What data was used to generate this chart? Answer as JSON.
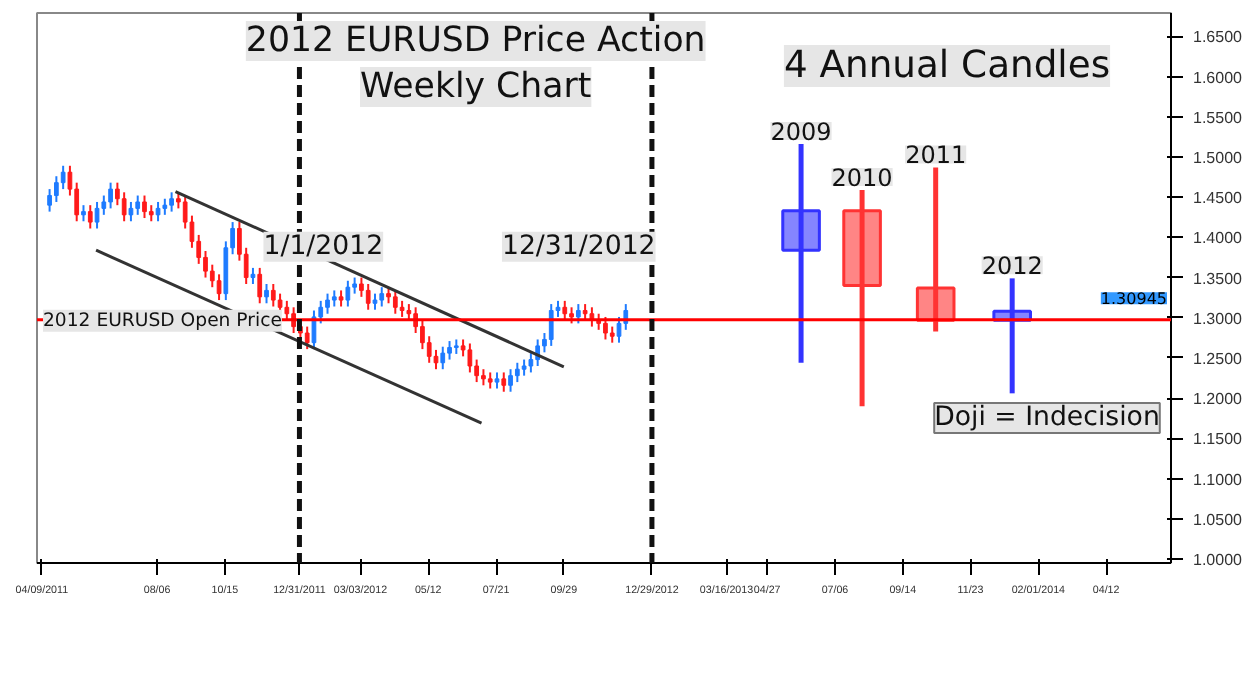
{
  "chart_data": {
    "type": "candlestick",
    "title": "2012 EURUSD Price Action",
    "subtitle": "Weekly Chart",
    "xlim": [
      "2011-04-04",
      "2014-06-18"
    ],
    "ylim": [
      0.995,
      1.679
    ],
    "xticks": [
      {
        "value": "2011-04-09",
        "label": "04/09/2011"
      },
      {
        "value": "2011-08-06",
        "label": "08/06"
      },
      {
        "value": "2011-10-15",
        "label": "10/15"
      },
      {
        "value": "2011-12-31",
        "label": "12/31/2011"
      },
      {
        "value": "2012-03-03",
        "label": "03/03/2012"
      },
      {
        "value": "2012-05-12",
        "label": "05/12"
      },
      {
        "value": "2012-07-21",
        "label": "07/21"
      },
      {
        "value": "2012-09-29",
        "label": "09/29"
      },
      {
        "value": "2012-12-29",
        "label": "12/29/2012"
      },
      {
        "value": "2013-03-16",
        "label": "03/16/2013"
      },
      {
        "value": "2013-04-27",
        "label": "04/27"
      },
      {
        "value": "2013-07-06",
        "label": "07/06"
      },
      {
        "value": "2013-09-14",
        "label": "09/14"
      },
      {
        "value": "2013-11-23",
        "label": "11/23"
      },
      {
        "value": "2014-02-01",
        "label": "02/01/2014"
      },
      {
        "value": "2014-04-12",
        "label": "04/12"
      }
    ],
    "yticks": [
      {
        "value": 1.0,
        "label": "1.0000"
      },
      {
        "value": 1.05,
        "label": "1.0500"
      },
      {
        "value": 1.1,
        "label": "1.1000"
      },
      {
        "value": 1.15,
        "label": "1.1500"
      },
      {
        "value": 1.2,
        "label": "1.2000"
      },
      {
        "value": 1.25,
        "label": "1.2500"
      },
      {
        "value": 1.3,
        "label": "1.3000"
      },
      {
        "value": 1.35,
        "label": "1.3500"
      },
      {
        "value": 1.4,
        "label": "1.4000"
      },
      {
        "value": 1.45,
        "label": "1.4500"
      },
      {
        "value": 1.5,
        "label": "1.5000"
      },
      {
        "value": 1.55,
        "label": "1.5500"
      },
      {
        "value": 1.6,
        "label": "1.6000"
      },
      {
        "value": 1.65,
        "label": "1.6500"
      }
    ],
    "grid": false,
    "series": [
      {
        "colors": [
          "#1e7bff",
          "#1e7bff",
          "#1e7bff",
          "#ff1a1a",
          "#ff1a1a",
          "#1e7bff",
          "#ff1a1a",
          "#1e7bff",
          "#1e7bff",
          "#1e7bff",
          "#ff1a1a",
          "#ff1a1a",
          "#1e7bff",
          "#1e7bff",
          "#ff1a1a",
          "#ff1a1a",
          "#1e7bff",
          "#1e7bff",
          "#1e7bff",
          "#ff1a1a",
          "#ff1a1a",
          "#ff1a1a",
          "#ff1a1a",
          "#ff1a1a",
          "#ff1a1a",
          "#ff1a1a",
          "#1e7bff",
          "#1e7bff",
          "#ff1a1a",
          "#ff1a1a",
          "#1e7bff",
          "#ff1a1a",
          "#1e7bff",
          "#ff1a1a",
          "#ff1a1a",
          "#ff1a1a",
          "#ff1a1a",
          "#ff1a1a",
          "#ff1a1a",
          "#1e7bff",
          "#1e7bff",
          "#1e7bff",
          "#1e7bff",
          "#ff1a1a",
          "#1e7bff",
          "#1e7bff",
          "#ff1a1a",
          "#ff1a1a",
          "#1e7bff",
          "#1e7bff",
          "#ff1a1a",
          "#ff1a1a",
          "#ff1a1a",
          "#ff1a1a",
          "#ff1a1a",
          "#ff1a1a",
          "#ff1a1a",
          "#ff1a1a",
          "#1e7bff",
          "#1e7bff",
          "#1e7bff",
          "#ff1a1a",
          "#ff1a1a",
          "#ff1a1a",
          "#ff1a1a",
          "#ff1a1a",
          "#1e7bff",
          "#ff1a1a",
          "#1e7bff",
          "#1e7bff",
          "#1e7bff",
          "#1e7bff",
          "#1e7bff",
          "#1e7bff",
          "#1e7bff",
          "#1e7bff",
          "#ff1a1a",
          "#ff1a1a",
          "#1e7bff",
          "#ff1a1a",
          "#ff1a1a",
          "#ff1a1a",
          "#ff1a1a",
          "#ff1a1a",
          "#1e7bff",
          "#1e7bff"
        ],
        "x": [
          "2011-04-17",
          "2011-04-24",
          "2011-05-01",
          "2011-05-08",
          "2011-05-15",
          "2011-05-22",
          "2011-05-29",
          "2011-06-05",
          "2011-06-12",
          "2011-06-19",
          "2011-06-26",
          "2011-07-03",
          "2011-07-10",
          "2011-07-17",
          "2011-07-24",
          "2011-07-31",
          "2011-08-07",
          "2011-08-14",
          "2011-08-21",
          "2011-08-28",
          "2011-09-04",
          "2011-09-11",
          "2011-09-18",
          "2011-09-25",
          "2011-10-02",
          "2011-10-09",
          "2011-10-16",
          "2011-10-23",
          "2011-10-30",
          "2011-11-06",
          "2011-11-13",
          "2011-11-20",
          "2011-11-27",
          "2011-12-04",
          "2011-12-11",
          "2011-12-18",
          "2011-12-25",
          "2012-01-01",
          "2012-01-08",
          "2012-01-15",
          "2012-01-22",
          "2012-01-29",
          "2012-02-05",
          "2012-02-12",
          "2012-02-19",
          "2012-02-26",
          "2012-03-04",
          "2012-03-11",
          "2012-03-18",
          "2012-03-25",
          "2012-04-01",
          "2012-04-08",
          "2012-04-15",
          "2012-04-22",
          "2012-04-29",
          "2012-05-06",
          "2012-05-13",
          "2012-05-20",
          "2012-05-27",
          "2012-06-03",
          "2012-06-10",
          "2012-06-17",
          "2012-06-24",
          "2012-07-01",
          "2012-07-08",
          "2012-07-15",
          "2012-07-22",
          "2012-07-29",
          "2012-08-05",
          "2012-08-12",
          "2012-08-19",
          "2012-08-26",
          "2012-09-02",
          "2012-09-09",
          "2012-09-16",
          "2012-09-23",
          "2012-09-30",
          "2012-10-07",
          "2012-10-14",
          "2012-10-21",
          "2012-10-28",
          "2012-11-04",
          "2012-11-11",
          "2012-11-18",
          "2012-11-25",
          "2012-12-02"
        ],
        "ohlc": [
          [
            1.44,
            1.46,
            1.432,
            1.452
          ],
          [
            1.452,
            1.476,
            1.444,
            1.468
          ],
          [
            1.468,
            1.489,
            1.46,
            1.481
          ],
          [
            1.481,
            1.489,
            1.452,
            1.46
          ],
          [
            1.46,
            1.468,
            1.42,
            1.428
          ],
          [
            1.428,
            1.44,
            1.42,
            1.432
          ],
          [
            1.432,
            1.44,
            1.411,
            1.419
          ],
          [
            1.419,
            1.444,
            1.411,
            1.436
          ],
          [
            1.436,
            1.452,
            1.428,
            1.444
          ],
          [
            1.444,
            1.468,
            1.436,
            1.46
          ],
          [
            1.46,
            1.468,
            1.44,
            1.448
          ],
          [
            1.448,
            1.456,
            1.42,
            1.428
          ],
          [
            1.428,
            1.444,
            1.42,
            1.436
          ],
          [
            1.436,
            1.452,
            1.428,
            1.444
          ],
          [
            1.444,
            1.452,
            1.424,
            1.432
          ],
          [
            1.432,
            1.44,
            1.42,
            1.428
          ],
          [
            1.428,
            1.444,
            1.42,
            1.436
          ],
          [
            1.436,
            1.448,
            1.428,
            1.44
          ],
          [
            1.44,
            1.456,
            1.432,
            1.448
          ],
          [
            1.448,
            1.456,
            1.436,
            1.444
          ],
          [
            1.444,
            1.452,
            1.411,
            1.419
          ],
          [
            1.419,
            1.427,
            1.387,
            1.395
          ],
          [
            1.395,
            1.403,
            1.367,
            1.375
          ],
          [
            1.375,
            1.383,
            1.35,
            1.358
          ],
          [
            1.358,
            1.366,
            1.338,
            1.346
          ],
          [
            1.346,
            1.354,
            1.322,
            1.33
          ],
          [
            1.33,
            1.395,
            1.322,
            1.387
          ],
          [
            1.387,
            1.419,
            1.379,
            1.411
          ],
          [
            1.411,
            1.419,
            1.371,
            1.379
          ],
          [
            1.379,
            1.387,
            1.342,
            1.35
          ],
          [
            1.35,
            1.362,
            1.342,
            1.354
          ],
          [
            1.354,
            1.362,
            1.318,
            1.326
          ],
          [
            1.326,
            1.342,
            1.318,
            1.334
          ],
          [
            1.334,
            1.342,
            1.314,
            1.322
          ],
          [
            1.322,
            1.33,
            1.305,
            1.313
          ],
          [
            1.313,
            1.321,
            1.297,
            1.305
          ],
          [
            1.305,
            1.313,
            1.281,
            1.289
          ],
          [
            1.289,
            1.297,
            1.273,
            1.281
          ],
          [
            1.281,
            1.289,
            1.261,
            1.269
          ],
          [
            1.269,
            1.309,
            1.261,
            1.301
          ],
          [
            1.301,
            1.321,
            1.293,
            1.313
          ],
          [
            1.313,
            1.33,
            1.305,
            1.322
          ],
          [
            1.322,
            1.334,
            1.314,
            1.326
          ],
          [
            1.326,
            1.334,
            1.314,
            1.322
          ],
          [
            1.322,
            1.346,
            1.314,
            1.338
          ],
          [
            1.338,
            1.35,
            1.33,
            1.342
          ],
          [
            1.342,
            1.35,
            1.326,
            1.334
          ],
          [
            1.334,
            1.342,
            1.31,
            1.318
          ],
          [
            1.318,
            1.33,
            1.31,
            1.322
          ],
          [
            1.322,
            1.338,
            1.314,
            1.33
          ],
          [
            1.33,
            1.338,
            1.318,
            1.326
          ],
          [
            1.326,
            1.334,
            1.305,
            1.313
          ],
          [
            1.313,
            1.321,
            1.301,
            1.309
          ],
          [
            1.309,
            1.317,
            1.297,
            1.305
          ],
          [
            1.305,
            1.313,
            1.281,
            1.289
          ],
          [
            1.289,
            1.297,
            1.261,
            1.269
          ],
          [
            1.269,
            1.277,
            1.244,
            1.252
          ],
          [
            1.252,
            1.26,
            1.236,
            1.244
          ],
          [
            1.244,
            1.264,
            1.236,
            1.256
          ],
          [
            1.256,
            1.271,
            1.248,
            1.263
          ],
          [
            1.263,
            1.273,
            1.255,
            1.265
          ],
          [
            1.265,
            1.273,
            1.252,
            1.26
          ],
          [
            1.26,
            1.268,
            1.232,
            1.24
          ],
          [
            1.24,
            1.248,
            1.22,
            1.228
          ],
          [
            1.228,
            1.236,
            1.216,
            1.224
          ],
          [
            1.224,
            1.232,
            1.212,
            1.22
          ],
          [
            1.22,
            1.232,
            1.212,
            1.224
          ],
          [
            1.224,
            1.232,
            1.208,
            1.216
          ],
          [
            1.216,
            1.236,
            1.208,
            1.228
          ],
          [
            1.228,
            1.244,
            1.22,
            1.236
          ],
          [
            1.236,
            1.248,
            1.228,
            1.24
          ],
          [
            1.24,
            1.256,
            1.232,
            1.248
          ],
          [
            1.248,
            1.273,
            1.24,
            1.265
          ],
          [
            1.265,
            1.281,
            1.257,
            1.273
          ],
          [
            1.273,
            1.317,
            1.265,
            1.309
          ],
          [
            1.309,
            1.321,
            1.301,
            1.313
          ],
          [
            1.313,
            1.321,
            1.297,
            1.305
          ],
          [
            1.305,
            1.313,
            1.293,
            1.301
          ],
          [
            1.301,
            1.317,
            1.293,
            1.309
          ],
          [
            1.309,
            1.317,
            1.297,
            1.305
          ],
          [
            1.305,
            1.313,
            1.289,
            1.297
          ],
          [
            1.297,
            1.305,
            1.285,
            1.293
          ],
          [
            1.293,
            1.301,
            1.273,
            1.281
          ],
          [
            1.281,
            1.289,
            1.269,
            1.277
          ],
          [
            1.277,
            1.301,
            1.269,
            1.293
          ],
          [
            1.293,
            1.317,
            1.285,
            1.309
          ]
        ]
      },
      {
        "colors": [
          "#3333ff",
          "#ff3333",
          "#ff3333",
          "#3333ff"
        ],
        "x": [
          "2013-06-01",
          "2013-08-03",
          "2013-10-18",
          "2014-01-05"
        ],
        "ohlc": [
          [
            1.384,
            1.516,
            1.244,
            1.433
          ],
          [
            1.433,
            1.459,
            1.19,
            1.34
          ],
          [
            1.337,
            1.487,
            1.283,
            1.297
          ],
          [
            1.297,
            1.349,
            1.206,
            1.308
          ]
        ]
      },
      {
        "type": "line",
        "color": "#333333",
        "x": [
          "2011-08-25",
          "2012-09-29"
        ],
        "values": [
          1.457,
          1.239
        ]
      },
      {
        "type": "line",
        "color": "#333333",
        "x": [
          "2011-06-04",
          "2012-07-06"
        ],
        "values": [
          1.384,
          1.169
        ]
      }
    ],
    "ref_lines": [
      {
        "axis": "y",
        "value": 1.2974,
        "label": "2012 EURUSD Open Price",
        "color": "#ff0000",
        "line_style": "solid"
      },
      {
        "axis": "x",
        "value": "2011-12-31",
        "label": "1/1/2012",
        "color": "#111111",
        "line_style": "dashed"
      },
      {
        "axis": "x",
        "value": "2012-12-29",
        "label": "12/31/2012",
        "color": "#111111",
        "line_style": "dashed"
      }
    ],
    "annotations": [
      "4 Annual Candles",
      "Doji = Indecision",
      {
        "text": "2009",
        "x": "2013-06-01",
        "y": 1.516
      },
      {
        "text": "2010",
        "x": "2013-08-03",
        "y": 1.459
      },
      {
        "text": "2011",
        "x": "2013-10-18",
        "y": 1.487
      },
      {
        "text": "2012",
        "x": "2014-01-05",
        "y": 1.349
      },
      {
        "text": "1.30945",
        "x": "2014-06-18",
        "y": 1.30945
      }
    ]
  }
}
